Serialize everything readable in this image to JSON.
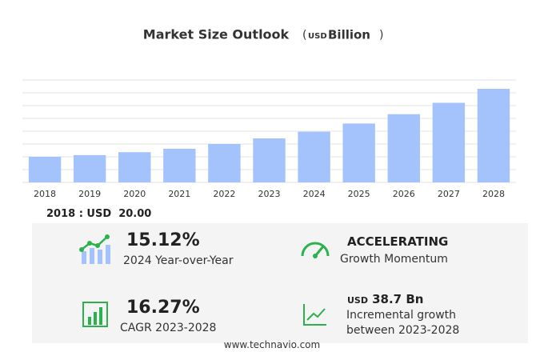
{
  "chart_data": {
    "type": "bar",
    "title": "Market Size Outlook",
    "unit": {
      "open": "(",
      "currency": "USD",
      "name": "Billion",
      "close": ")"
    },
    "categories": [
      "2018",
      "2019",
      "2020",
      "2021",
      "2022",
      "2023",
      "2024",
      "2025",
      "2026",
      "2027",
      "2028"
    ],
    "values": [
      20,
      21.3,
      23.6,
      26.3,
      30,
      34.4,
      39.6,
      46,
      53.3,
      62.2,
      73.1
    ],
    "color": "#a4c2fc",
    "ylim": [
      0,
      80
    ],
    "yticks": [
      0,
      10,
      20,
      30,
      40,
      50,
      60,
      70,
      80
    ],
    "grid": true
  },
  "summary": {
    "base_label": "2018 : USD",
    "base_value": "20.00",
    "stats": [
      {
        "value": "15.12%",
        "label": "2024 Year-over-Year"
      },
      {
        "value": "ACCELERATING",
        "label": "Growth Momentum"
      },
      {
        "value": "16.27%",
        "label": "CAGR 2023-2028"
      },
      {
        "currency": "USD",
        "value": "38.7 Bn",
        "label": "Incremental growth",
        "label2": "between 2023-2028"
      }
    ]
  },
  "footer": "www.technavio.com"
}
